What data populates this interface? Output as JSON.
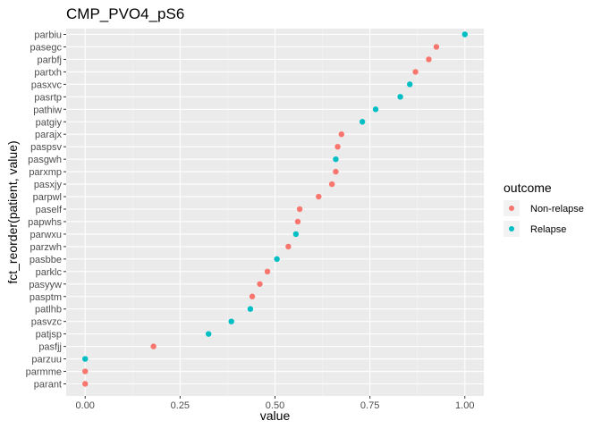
{
  "chart_data": {
    "type": "scatter",
    "title": "CMP_PVO4_pS6",
    "xlabel": "value",
    "ylabel": "fct_reorder(patient, value)",
    "xlim": [
      -0.05,
      1.05
    ],
    "x_ticks": [
      "0.00",
      "0.25",
      "0.50",
      "0.75",
      "1.00"
    ],
    "x_tick_values": [
      0,
      0.25,
      0.5,
      0.75,
      1.0
    ],
    "grid": true,
    "legend_position": "right",
    "legend": {
      "title": "outcome",
      "entries": [
        {
          "label": "Non-relapse",
          "color": "#F8766D"
        },
        {
          "label": "Relapse",
          "color": "#00BFC4"
        }
      ]
    },
    "points": [
      {
        "patient": "parbiu",
        "value": 1.0,
        "outcome": "Relapse"
      },
      {
        "patient": "pasegc",
        "value": 0.925,
        "outcome": "Non-relapse"
      },
      {
        "patient": "parbfj",
        "value": 0.905,
        "outcome": "Non-relapse"
      },
      {
        "patient": "partxh",
        "value": 0.87,
        "outcome": "Non-relapse"
      },
      {
        "patient": "pasxvc",
        "value": 0.855,
        "outcome": "Relapse"
      },
      {
        "patient": "pasrtp",
        "value": 0.83,
        "outcome": "Relapse"
      },
      {
        "patient": "pathiw",
        "value": 0.765,
        "outcome": "Relapse"
      },
      {
        "patient": "patgiy",
        "value": 0.73,
        "outcome": "Relapse"
      },
      {
        "patient": "parajx",
        "value": 0.675,
        "outcome": "Non-relapse"
      },
      {
        "patient": "paspsv",
        "value": 0.665,
        "outcome": "Non-relapse"
      },
      {
        "patient": "pasgwh",
        "value": 0.66,
        "outcome": "Relapse"
      },
      {
        "patient": "parxmp",
        "value": 0.66,
        "outcome": "Non-relapse"
      },
      {
        "patient": "pasxjy",
        "value": 0.65,
        "outcome": "Non-relapse"
      },
      {
        "patient": "parpwl",
        "value": 0.615,
        "outcome": "Non-relapse"
      },
      {
        "patient": "paself",
        "value": 0.565,
        "outcome": "Non-relapse"
      },
      {
        "patient": "papwhs",
        "value": 0.56,
        "outcome": "Non-relapse"
      },
      {
        "patient": "parwxu",
        "value": 0.555,
        "outcome": "Relapse"
      },
      {
        "patient": "parzwh",
        "value": 0.535,
        "outcome": "Non-relapse"
      },
      {
        "patient": "pasbbe",
        "value": 0.505,
        "outcome": "Relapse"
      },
      {
        "patient": "parklc",
        "value": 0.48,
        "outcome": "Non-relapse"
      },
      {
        "patient": "pasyyw",
        "value": 0.46,
        "outcome": "Non-relapse"
      },
      {
        "patient": "pasptm",
        "value": 0.44,
        "outcome": "Non-relapse"
      },
      {
        "patient": "patlhb",
        "value": 0.435,
        "outcome": "Relapse"
      },
      {
        "patient": "pasvzc",
        "value": 0.385,
        "outcome": "Relapse"
      },
      {
        "patient": "patjsp",
        "value": 0.325,
        "outcome": "Relapse"
      },
      {
        "patient": "pasfjj",
        "value": 0.18,
        "outcome": "Non-relapse"
      },
      {
        "patient": "parzuu",
        "value": 0.0,
        "outcome": "Relapse"
      },
      {
        "patient": "parmme",
        "value": 0.0,
        "outcome": "Non-relapse"
      },
      {
        "patient": "parant",
        "value": 0.0,
        "outcome": "Non-relapse"
      }
    ]
  }
}
